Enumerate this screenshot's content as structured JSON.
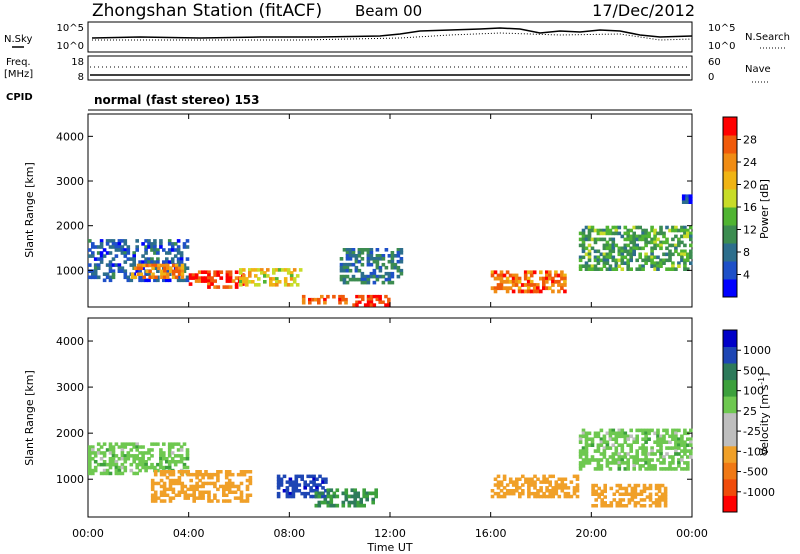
{
  "header": {
    "station": "Zhongshan Station (fitACF)",
    "beam": "Beam 00",
    "date": "17/Dec/2012"
  },
  "noise_panel": {
    "left_label": "N.Sky",
    "right_label": "N.Search",
    "left_ticks": [
      "10^5",
      "10^0"
    ],
    "right_ticks": [
      "10^5",
      "10^0"
    ]
  },
  "freq_panel": {
    "left_label_1": "Freq.",
    "left_label_2": "[MHz]",
    "right_label": "Nave",
    "left_ticks": [
      "18",
      "8"
    ],
    "right_ticks": [
      "60",
      "0"
    ]
  },
  "cpid_panel": {
    "label": "CPID",
    "mode_text": "normal (fast stereo) 153"
  },
  "colors": {
    "power_scale": [
      "#0000ff",
      "#1e50c8",
      "#2d6e8c",
      "#3c8c50",
      "#50b432",
      "#c8dc28",
      "#f0b414",
      "#f08c14",
      "#f05a0a",
      "#ff0000"
    ],
    "velocity_scale": [
      "#0000c8",
      "#1e46b4",
      "#2d7a5a",
      "#3ca03c",
      "#6ec850",
      "#bebebe",
      "#bebebe",
      "#f0a028",
      "#f07814",
      "#f04b0a",
      "#ff0000"
    ]
  },
  "chart_data": [
    {
      "type": "heatmap",
      "title": "",
      "xlabel": "",
      "ylabel": "Slant Range [km]",
      "x_tick_labels": [
        "00:00",
        "04:00",
        "08:00",
        "12:00",
        "16:00",
        "20:00",
        "00:00"
      ],
      "xlim": [
        0,
        24
      ],
      "ylim": [
        180,
        4500
      ],
      "y_ticks": [
        1000,
        2000,
        3000,
        4000
      ],
      "colorbar": {
        "label": "Power [dB]",
        "ticks": [
          "4",
          "8",
          "12",
          "16",
          "20",
          "24",
          "28"
        ],
        "range": [
          0,
          30
        ]
      },
      "regions": [
        {
          "x": [
            0.0,
            4.0
          ],
          "y": [
            750,
            1700
          ],
          "value": 6
        },
        {
          "x": [
            1.7,
            3.8
          ],
          "y": [
            820,
            1150
          ],
          "value": 22
        },
        {
          "x": [
            4.0,
            6.2
          ],
          "y": [
            600,
            1000
          ],
          "value": 27
        },
        {
          "x": [
            6.0,
            8.5
          ],
          "y": [
            650,
            1050
          ],
          "value": 18
        },
        {
          "x": [
            8.5,
            10.3
          ],
          "y": [
            250,
            450
          ],
          "value": 26
        },
        {
          "x": [
            10.5,
            12.0
          ],
          "y": [
            200,
            450
          ],
          "value": 28
        },
        {
          "x": [
            10.0,
            12.5
          ],
          "y": [
            700,
            1500
          ],
          "value": 8
        },
        {
          "x": [
            16.0,
            19.0
          ],
          "y": [
            500,
            1000
          ],
          "value": 24
        },
        {
          "x": [
            19.5,
            24.0
          ],
          "y": [
            1000,
            2000
          ],
          "value": 12
        },
        {
          "x": [
            23.6,
            24.0
          ],
          "y": [
            2500,
            2700
          ],
          "value": 4
        }
      ]
    },
    {
      "type": "heatmap",
      "title": "",
      "xlabel": "Time UT",
      "ylabel": "Slant Range [km]",
      "x_tick_labels": [
        "00:00",
        "04:00",
        "08:00",
        "12:00",
        "16:00",
        "20:00",
        "00:00"
      ],
      "xlim": [
        0,
        24
      ],
      "ylim": [
        180,
        4500
      ],
      "y_ticks": [
        1000,
        2000,
        3000,
        4000
      ],
      "colorbar": {
        "label": "Velocity [m s^-1]",
        "ticks": [
          "1000",
          "500",
          "100",
          "25",
          "-25",
          "-100",
          "-500",
          "-1000"
        ]
      },
      "regions": [
        {
          "x": [
            0.0,
            4.0
          ],
          "y": [
            1100,
            1800
          ],
          "value": 0
        },
        {
          "x": [
            2.5,
            6.5
          ],
          "y": [
            500,
            1200
          ],
          "value": -300
        },
        {
          "x": [
            7.5,
            9.5
          ],
          "y": [
            600,
            1100
          ],
          "value": 800
        },
        {
          "x": [
            9.0,
            11.5
          ],
          "y": [
            400,
            800
          ],
          "value": 100
        },
        {
          "x": [
            16.0,
            19.5
          ],
          "y": [
            600,
            1100
          ],
          "value": -300
        },
        {
          "x": [
            19.5,
            24.0
          ],
          "y": [
            1200,
            2100
          ],
          "value": 0
        },
        {
          "x": [
            20.0,
            23.0
          ],
          "y": [
            400,
            900
          ],
          "value": -200
        }
      ]
    }
  ]
}
